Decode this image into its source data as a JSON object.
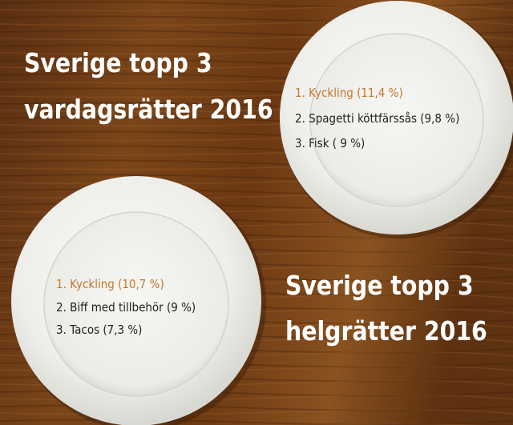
{
  "sections": [
    {
      "title_lines": [
        "Sverige topp 3",
        "vardagsrätter 2016"
      ],
      "items": [
        "1. Kyckling (11,4 %)",
        "2. Spagetti köttfärssås (9,8 %)",
        "3. Fisk ( 9 %)"
      ]
    },
    {
      "title_lines": [
        "Sverige topp 3",
        "helgrätter 2016"
      ],
      "items": [
        "1. Kyckling (10,7 %)",
        "2. Biff med tillbehör (9 %)",
        "3. Tacos (7,3 %)"
      ]
    }
  ]
}
